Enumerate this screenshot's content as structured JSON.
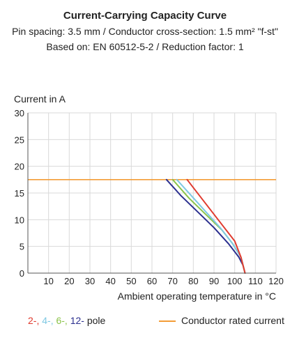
{
  "header": {
    "title": "Current-Carrying Capacity Curve",
    "subtitle_1": "Pin spacing: 3.5 mm / Conductor cross-section: 1.5 mm² \"f-st\"",
    "subtitle_2": "Based on: EN 60512-5-2 / Reduction factor: 1"
  },
  "legend": {
    "poles": [
      {
        "text": "2-",
        "color": "#e03a2e"
      },
      {
        "text": "4-",
        "color": "#7ec8e3"
      },
      {
        "text": "6-",
        "color": "#8bc34a"
      },
      {
        "text": "12-",
        "color": "#2b2f8f"
      }
    ],
    "poles_suffix": "pole",
    "rated_label": "Conductor rated current",
    "rated_color": "#f39c36"
  },
  "chart_data": {
    "type": "line",
    "xlabel": "Ambient operating temperature in °C",
    "ylabel": "Current in A",
    "xlim": [
      0,
      120
    ],
    "ylim": [
      0,
      30
    ],
    "xticks": [
      10,
      20,
      30,
      40,
      50,
      60,
      70,
      80,
      90,
      100,
      110,
      120
    ],
    "yticks": [
      0,
      5,
      10,
      15,
      20,
      25,
      30
    ],
    "grid": true,
    "rated_current": {
      "value": 17.5,
      "x_range": [
        0,
        120
      ],
      "color": "#f39c36"
    },
    "series": [
      {
        "name": "12-",
        "color": "#2b2f8f",
        "points": [
          [
            67,
            17.5
          ],
          [
            74,
            14.5
          ],
          [
            82,
            11.5
          ],
          [
            90,
            8.5
          ],
          [
            97,
            5.5
          ],
          [
            102,
            3
          ],
          [
            104,
            1.5
          ],
          [
            105,
            0
          ]
        ]
      },
      {
        "name": "6-",
        "color": "#8bc34a",
        "points": [
          [
            70,
            17.5
          ],
          [
            78,
            14
          ],
          [
            86,
            11
          ],
          [
            94,
            8
          ],
          [
            99,
            5.5
          ],
          [
            103,
            3
          ],
          [
            105,
            0
          ]
        ]
      },
      {
        "name": "4-",
        "color": "#7ec8e3",
        "points": [
          [
            72,
            17.5
          ],
          [
            79,
            14.5
          ],
          [
            86,
            11.5
          ],
          [
            93,
            8.5
          ],
          [
            99,
            5.5
          ],
          [
            103,
            3
          ],
          [
            105,
            0
          ]
        ]
      },
      {
        "name": "2-",
        "color": "#e03a2e",
        "points": [
          [
            77,
            17.5
          ],
          [
            83,
            14.5
          ],
          [
            89,
            11.5
          ],
          [
            95,
            8.5
          ],
          [
            100,
            6
          ],
          [
            103,
            3
          ],
          [
            105,
            0
          ]
        ]
      }
    ]
  }
}
